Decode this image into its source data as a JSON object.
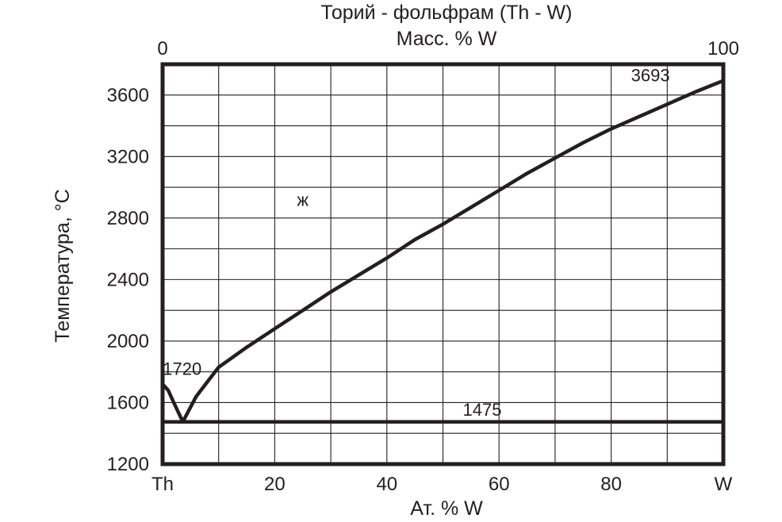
{
  "chart_data": {
    "type": "line",
    "title": "Торий - фольфрам (Th - W)",
    "top_axis": {
      "label": "Масс. % W",
      "tick_labels": [
        "0",
        "100"
      ]
    },
    "xlabel": "Ат. % W",
    "ylabel": "Температура,  °C",
    "xlim": [
      0,
      100
    ],
    "ylim": [
      1200,
      3800
    ],
    "x_tick_values": [
      0,
      20,
      40,
      60,
      80,
      100
    ],
    "x_tick_labels": [
      "Th",
      "20",
      "40",
      "60",
      "80",
      "W"
    ],
    "y_tick_values": [
      1200,
      1600,
      2000,
      2400,
      2800,
      3200,
      3600
    ],
    "y_tick_labels": [
      "1200",
      "1600",
      "2000",
      "2400",
      "2800",
      "3200",
      "3600"
    ],
    "grid": true,
    "grid_x_step": 10,
    "grid_y_step": 200,
    "series": [
      {
        "x": [
          0,
          1,
          2,
          3.6
        ],
        "y": [
          1720,
          1680,
          1600,
          1475
        ]
      },
      {
        "x": [
          3.6,
          6,
          10,
          15,
          20,
          25,
          30,
          35,
          40,
          45,
          50,
          55,
          60,
          65,
          70,
          75,
          80,
          85,
          90,
          95,
          100
        ],
        "y": [
          1475,
          1640,
          1830,
          1960,
          2080,
          2200,
          2320,
          2430,
          2540,
          2660,
          2760,
          2870,
          2980,
          3090,
          3190,
          3290,
          3380,
          3460,
          3540,
          3620,
          3693
        ]
      },
      {
        "x": [
          0,
          100
        ],
        "y": [
          1475,
          1475
        ]
      }
    ],
    "annotations": [
      {
        "text": "1720",
        "x": 3.5,
        "y": 1780
      },
      {
        "text": "1475",
        "x": 57,
        "y": 1515
      },
      {
        "text": "3693",
        "x": 87,
        "y": 3690
      },
      {
        "text": "ж",
        "x": 25,
        "y": 2880
      }
    ]
  }
}
